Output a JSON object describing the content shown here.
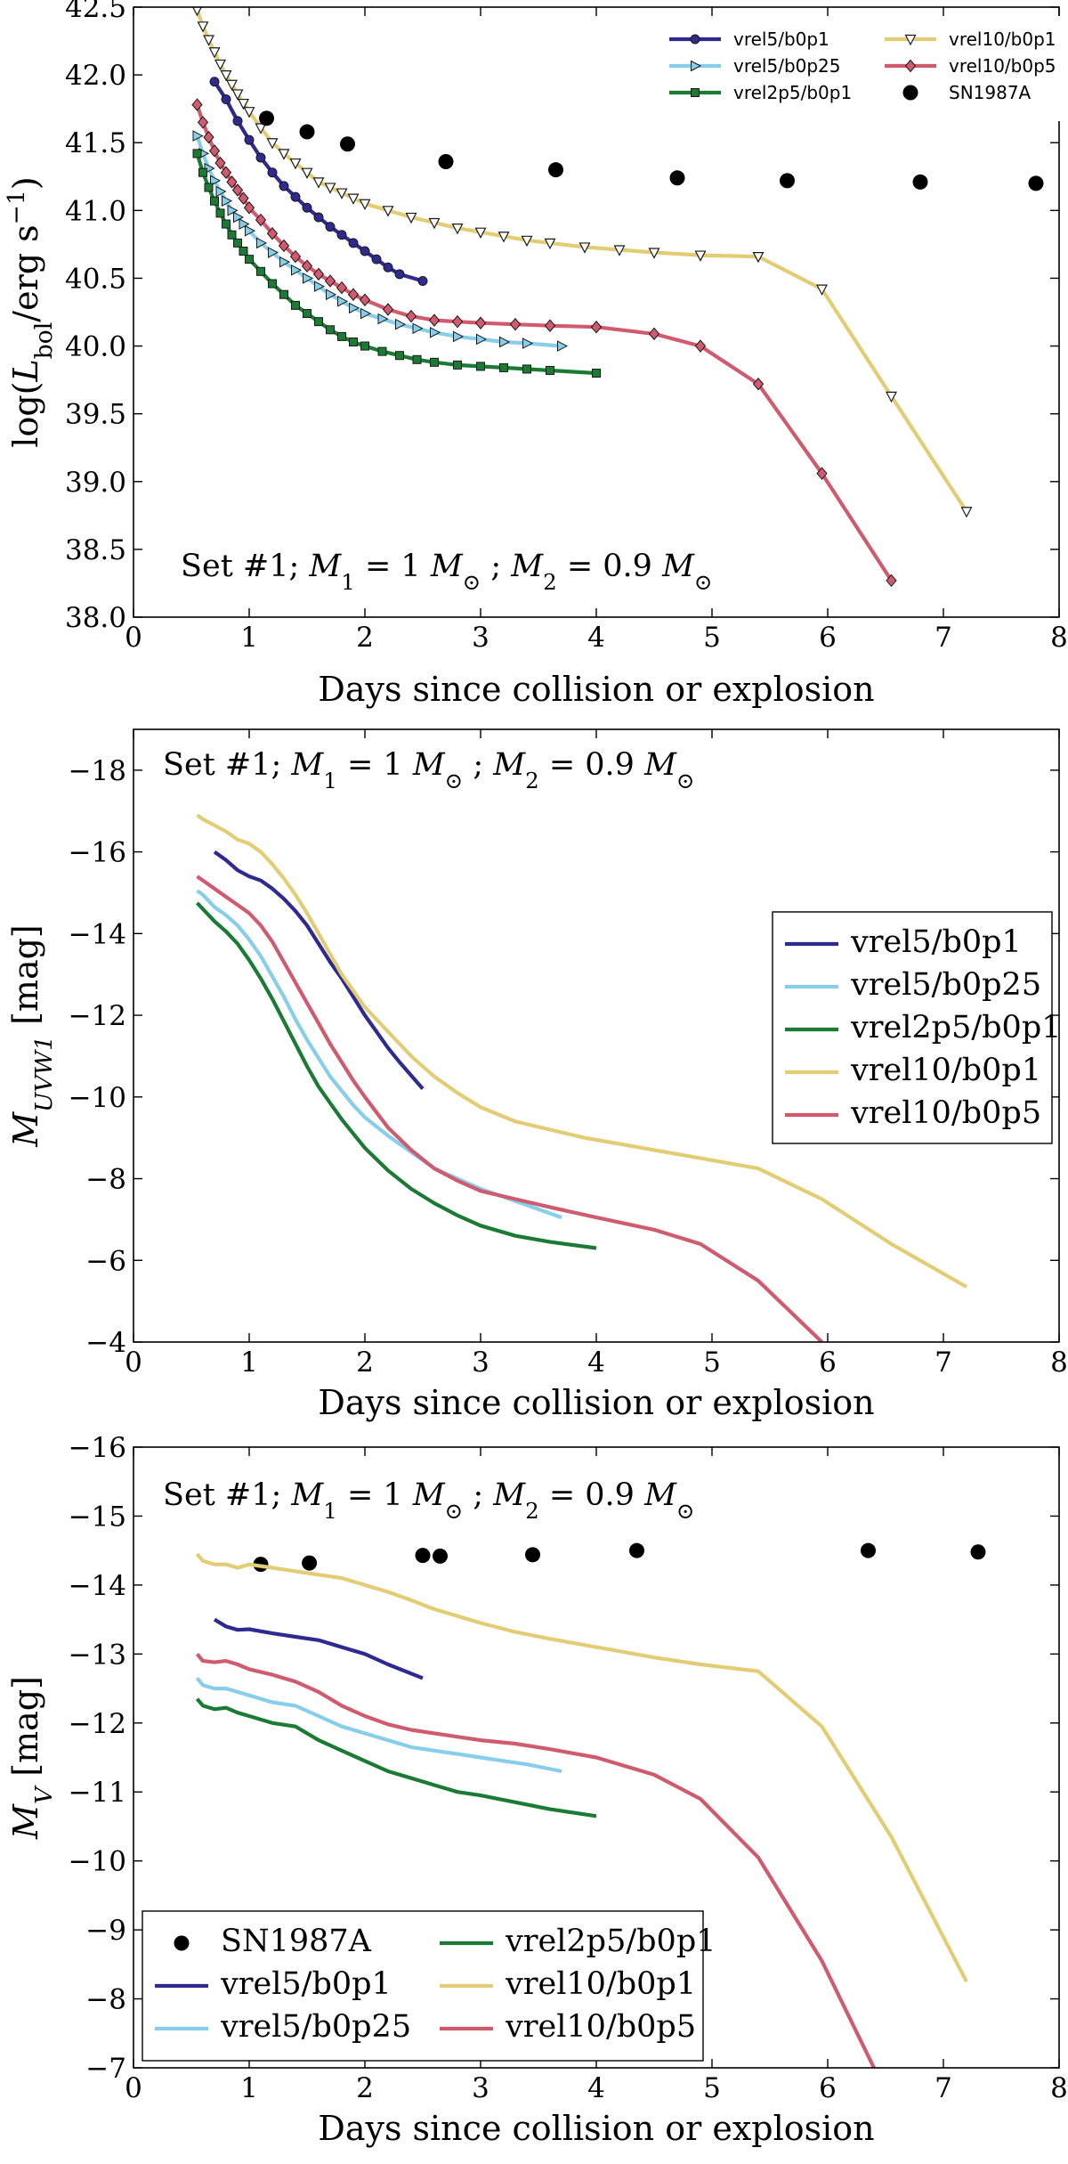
{
  "colors": {
    "vrel5/b0p1": "#2e2a8f",
    "vrel5/b0p25": "#87ceeb",
    "vrel2p5/b0p1": "#1b7a34",
    "vrel10/b0p1": "#e3cd74",
    "vrel10/b0p5": "#d05a6e",
    "SN1987A": "#000000"
  },
  "chart_data": [
    {
      "type": "line",
      "title": "",
      "xlabel": "Days since collision or explosion",
      "ylabel": "log(L_bol/erg s^-1)",
      "ylabel_parts": [
        "log(",
        "L",
        "bol",
        "/erg s",
        "−1",
        ")"
      ],
      "xlim": [
        0,
        8
      ],
      "ylim": [
        38.0,
        42.5
      ],
      "xticks": [
        "0",
        "1",
        "2",
        "3",
        "4",
        "5",
        "6",
        "7",
        "8"
      ],
      "yticks": [
        "38.0",
        "38.5",
        "39.0",
        "39.5",
        "40.0",
        "40.5",
        "41.0",
        "41.5",
        "42.0",
        "42.5"
      ],
      "annotation": "Set #1; M1 = 1 M⊙ ; M2 = 0.9 M⊙",
      "annotation_parts": [
        "Set #1; ",
        "M",
        "1",
        " = 1 ",
        "M",
        "⊙",
        " ; ",
        "M",
        "2",
        " = 0.9 ",
        "M",
        "⊙"
      ],
      "legend_position": "top-right",
      "legend_columns": 2,
      "series": [
        {
          "name": "vrel5/b0p1",
          "marker": "circle",
          "x": [
            0.7,
            0.8,
            0.9,
            1.0,
            1.1,
            1.2,
            1.3,
            1.4,
            1.5,
            1.6,
            1.7,
            1.8,
            1.9,
            2.0,
            2.1,
            2.2,
            2.3,
            2.5
          ],
          "y": [
            41.95,
            41.82,
            41.66,
            41.52,
            41.39,
            41.28,
            41.18,
            41.1,
            41.02,
            40.95,
            40.88,
            40.82,
            40.76,
            40.7,
            40.64,
            40.58,
            40.53,
            40.48
          ]
        },
        {
          "name": "vrel5/b0p25",
          "marker": "triangle-right",
          "x": [
            0.55,
            0.6,
            0.65,
            0.7,
            0.75,
            0.8,
            0.85,
            0.9,
            0.95,
            1.0,
            1.1,
            1.2,
            1.3,
            1.4,
            1.5,
            1.6,
            1.7,
            1.8,
            1.9,
            2.0,
            2.15,
            2.3,
            2.45,
            2.6,
            2.8,
            3.0,
            3.2,
            3.4,
            3.7
          ],
          "y": [
            41.55,
            41.42,
            41.31,
            41.22,
            41.14,
            41.07,
            41.0,
            40.95,
            40.9,
            40.85,
            40.76,
            40.69,
            40.62,
            40.56,
            40.5,
            40.44,
            40.38,
            40.33,
            40.28,
            40.24,
            40.2,
            40.16,
            40.13,
            40.1,
            40.07,
            40.05,
            40.03,
            40.02,
            40.0
          ]
        },
        {
          "name": "vrel2p5/b0p1",
          "marker": "square",
          "x": [
            0.55,
            0.6,
            0.65,
            0.7,
            0.75,
            0.8,
            0.85,
            0.9,
            0.95,
            1.0,
            1.1,
            1.2,
            1.3,
            1.4,
            1.5,
            1.6,
            1.7,
            1.8,
            1.9,
            2.0,
            2.15,
            2.3,
            2.45,
            2.6,
            2.8,
            3.0,
            3.2,
            3.4,
            3.6,
            4.0
          ],
          "y": [
            41.42,
            41.28,
            41.17,
            41.07,
            40.98,
            40.9,
            40.82,
            40.76,
            40.7,
            40.64,
            40.55,
            40.46,
            40.38,
            40.3,
            40.24,
            40.18,
            40.12,
            40.07,
            40.03,
            40.0,
            39.96,
            39.93,
            39.9,
            39.88,
            39.86,
            39.85,
            39.84,
            39.83,
            39.82,
            39.8
          ]
        },
        {
          "name": "vrel10/b0p1",
          "marker": "triangle-down",
          "x": [
            0.55,
            0.6,
            0.65,
            0.7,
            0.75,
            0.8,
            0.85,
            0.9,
            0.95,
            1.0,
            1.1,
            1.2,
            1.3,
            1.4,
            1.5,
            1.6,
            1.7,
            1.8,
            1.9,
            2.0,
            2.2,
            2.4,
            2.6,
            2.8,
            3.0,
            3.2,
            3.4,
            3.6,
            3.9,
            4.2,
            4.5,
            4.9,
            5.4,
            5.95,
            6.55,
            7.2
          ],
          "y": [
            42.48,
            42.36,
            42.26,
            42.17,
            42.08,
            42.0,
            41.93,
            41.86,
            41.79,
            41.73,
            41.61,
            41.5,
            41.42,
            41.35,
            41.28,
            41.21,
            41.17,
            41.13,
            41.09,
            41.05,
            41.0,
            40.95,
            40.91,
            40.87,
            40.84,
            40.81,
            40.78,
            40.76,
            40.73,
            40.71,
            40.69,
            40.67,
            40.66,
            40.42,
            39.63,
            38.78
          ]
        },
        {
          "name": "vrel10/b0p5",
          "marker": "diamond",
          "x": [
            0.55,
            0.6,
            0.65,
            0.7,
            0.75,
            0.8,
            0.85,
            0.9,
            0.95,
            1.0,
            1.1,
            1.2,
            1.3,
            1.4,
            1.5,
            1.6,
            1.7,
            1.8,
            1.9,
            2.0,
            2.2,
            2.4,
            2.6,
            2.8,
            3.0,
            3.3,
            3.6,
            4.0,
            4.5,
            4.9,
            5.4,
            5.95,
            6.55
          ],
          "y": [
            41.78,
            41.65,
            41.54,
            41.44,
            41.35,
            41.28,
            41.21,
            41.15,
            41.09,
            41.02,
            40.93,
            40.83,
            40.74,
            40.66,
            40.59,
            40.53,
            40.48,
            40.43,
            40.38,
            40.34,
            40.27,
            40.22,
            40.19,
            40.18,
            40.17,
            40.16,
            40.15,
            40.14,
            40.09,
            40.0,
            39.72,
            39.06,
            38.27
          ]
        },
        {
          "name": "SN1987A",
          "marker": "dot",
          "line": false,
          "x": [
            1.15,
            1.5,
            1.85,
            2.7,
            3.65,
            4.7,
            5.65,
            6.8,
            7.8
          ],
          "y": [
            41.68,
            41.58,
            41.49,
            41.36,
            41.3,
            41.24,
            41.22,
            41.21,
            41.2
          ]
        }
      ]
    },
    {
      "type": "line",
      "title": "",
      "xlabel": "Days since collision or explosion",
      "ylabel": "M_UVW1 [mag]",
      "ylabel_parts": [
        "M",
        "UVW1",
        " [mag]"
      ],
      "xlim": [
        0,
        8
      ],
      "ylim": [
        -19,
        -4
      ],
      "y_inverted": true,
      "xticks": [
        "0",
        "1",
        "2",
        "3",
        "4",
        "5",
        "6",
        "7",
        "8"
      ],
      "yticks": [
        "−4",
        "−6",
        "−8",
        "−10",
        "−12",
        "−14",
        "−16",
        "−18"
      ],
      "annotation": "Set #1; M1 = 1 M⊙ ; M2 = 0.9 M⊙",
      "annotation_parts": [
        "Set #1; ",
        "M",
        "1",
        " = 1 ",
        "M",
        "⊙",
        " ; ",
        "M",
        "2",
        " = 0.9 ",
        "M",
        "⊙"
      ],
      "legend_position": "center-right",
      "legend_columns": 1,
      "series": [
        {
          "name": "vrel5/b0p1",
          "x": [
            0.7,
            0.8,
            0.9,
            1.0,
            1.1,
            1.2,
            1.3,
            1.4,
            1.5,
            1.6,
            1.7,
            1.8,
            1.9,
            2.0,
            2.1,
            2.2,
            2.3,
            2.5
          ],
          "y": [
            -16.0,
            -15.8,
            -15.55,
            -15.4,
            -15.3,
            -15.1,
            -14.85,
            -14.55,
            -14.2,
            -13.75,
            -13.3,
            -12.9,
            -12.45,
            -12.0,
            -11.6,
            -11.2,
            -10.85,
            -10.2
          ]
        },
        {
          "name": "vrel5/b0p25",
          "x": [
            0.55,
            0.6,
            0.7,
            0.8,
            0.9,
            1.0,
            1.1,
            1.2,
            1.3,
            1.4,
            1.5,
            1.6,
            1.7,
            1.8,
            1.9,
            2.0,
            2.2,
            2.4,
            2.6,
            2.8,
            3.0,
            3.2,
            3.4,
            3.7
          ],
          "y": [
            -15.05,
            -14.95,
            -14.65,
            -14.45,
            -14.2,
            -13.85,
            -13.45,
            -12.95,
            -12.45,
            -11.9,
            -11.4,
            -10.95,
            -10.5,
            -10.15,
            -9.8,
            -9.5,
            -9.05,
            -8.65,
            -8.25,
            -8.0,
            -7.75,
            -7.55,
            -7.35,
            -7.05
          ]
        },
        {
          "name": "vrel2p5/b0p1",
          "x": [
            0.55,
            0.6,
            0.7,
            0.8,
            0.9,
            1.0,
            1.1,
            1.2,
            1.3,
            1.4,
            1.5,
            1.6,
            1.7,
            1.8,
            1.9,
            2.0,
            2.2,
            2.4,
            2.6,
            2.8,
            3.0,
            3.3,
            3.6,
            4.0
          ],
          "y": [
            -14.75,
            -14.6,
            -14.3,
            -14.05,
            -13.75,
            -13.35,
            -12.9,
            -12.4,
            -11.85,
            -11.3,
            -10.75,
            -10.25,
            -9.85,
            -9.45,
            -9.1,
            -8.75,
            -8.2,
            -7.75,
            -7.4,
            -7.1,
            -6.85,
            -6.6,
            -6.45,
            -6.3
          ]
        },
        {
          "name": "vrel10/b0p1",
          "x": [
            0.55,
            0.6,
            0.7,
            0.8,
            0.9,
            1.0,
            1.1,
            1.2,
            1.3,
            1.4,
            1.5,
            1.6,
            1.7,
            1.8,
            1.9,
            2.0,
            2.2,
            2.4,
            2.6,
            2.8,
            3.0,
            3.3,
            3.6,
            3.9,
            4.2,
            4.5,
            4.9,
            5.4,
            5.95,
            6.55,
            7.2
          ],
          "y": [
            -16.9,
            -16.8,
            -16.65,
            -16.5,
            -16.3,
            -16.2,
            -16.0,
            -15.7,
            -15.35,
            -14.95,
            -14.5,
            -14.0,
            -13.5,
            -13.0,
            -12.6,
            -12.2,
            -11.6,
            -11.0,
            -10.5,
            -10.1,
            -9.75,
            -9.4,
            -9.2,
            -9.0,
            -8.85,
            -8.7,
            -8.5,
            -8.25,
            -7.5,
            -6.4,
            -5.35
          ]
        },
        {
          "name": "vrel10/b0p5",
          "x": [
            0.55,
            0.6,
            0.7,
            0.8,
            0.9,
            1.0,
            1.1,
            1.2,
            1.3,
            1.4,
            1.5,
            1.6,
            1.7,
            1.8,
            1.9,
            2.0,
            2.2,
            2.4,
            2.6,
            2.8,
            3.0,
            3.3,
            3.6,
            4.0,
            4.5,
            4.9,
            5.4,
            5.95
          ],
          "y": [
            -15.4,
            -15.3,
            -15.1,
            -14.9,
            -14.7,
            -14.5,
            -14.2,
            -13.8,
            -13.3,
            -12.8,
            -12.3,
            -11.8,
            -11.3,
            -10.85,
            -10.4,
            -10.0,
            -9.25,
            -8.7,
            -8.25,
            -7.95,
            -7.7,
            -7.5,
            -7.3,
            -7.05,
            -6.75,
            -6.4,
            -5.5,
            -4.0
          ]
        }
      ]
    },
    {
      "type": "line",
      "title": "",
      "xlabel": "Days since collision or explosion",
      "ylabel": "M_V [mag]",
      "ylabel_parts": [
        "M",
        "V",
        " [mag]"
      ],
      "xlim": [
        0,
        8
      ],
      "ylim": [
        -16,
        -7
      ],
      "y_inverted": true,
      "xticks": [
        "0",
        "1",
        "2",
        "3",
        "4",
        "5",
        "6",
        "7",
        "8"
      ],
      "yticks": [
        "−7",
        "−8",
        "−9",
        "−10",
        "−11",
        "−12",
        "−13",
        "−14",
        "−15",
        "−16"
      ],
      "annotation": "Set #1; M1 = 1 M⊙ ; M2 = 0.9 M⊙",
      "annotation_parts": [
        "Set #1; ",
        "M",
        "1",
        " = 1 ",
        "M",
        "⊙",
        " ; ",
        "M",
        "2",
        " = 0.9 ",
        "M",
        "⊙"
      ],
      "legend_position": "bottom-left",
      "legend_columns": 2,
      "series": [
        {
          "name": "SN1987A",
          "marker": "dot",
          "line": false,
          "x": [
            1.1,
            1.52,
            2.5,
            2.65,
            3.45,
            4.35,
            6.35,
            7.3
          ],
          "y": [
            -14.3,
            -14.32,
            -14.43,
            -14.42,
            -14.44,
            -14.5,
            -14.5,
            -14.48
          ]
        },
        {
          "name": "vrel5/b0p1",
          "x": [
            0.7,
            0.8,
            0.9,
            1.0,
            1.2,
            1.4,
            1.6,
            1.8,
            2.0,
            2.2,
            2.5
          ],
          "y": [
            -13.5,
            -13.4,
            -13.35,
            -13.36,
            -13.3,
            -13.25,
            -13.2,
            -13.1,
            -13.0,
            -12.85,
            -12.65
          ]
        },
        {
          "name": "vrel5/b0p25",
          "x": [
            0.55,
            0.6,
            0.7,
            0.8,
            0.9,
            1.0,
            1.2,
            1.4,
            1.6,
            1.8,
            2.0,
            2.2,
            2.4,
            2.6,
            2.8,
            3.0,
            3.2,
            3.4,
            3.7
          ],
          "y": [
            -12.65,
            -12.55,
            -12.5,
            -12.5,
            -12.45,
            -12.4,
            -12.3,
            -12.25,
            -12.1,
            -11.95,
            -11.85,
            -11.75,
            -11.65,
            -11.6,
            -11.55,
            -11.5,
            -11.45,
            -11.4,
            -11.3
          ]
        },
        {
          "name": "vrel2p5/b0p1",
          "x": [
            0.55,
            0.6,
            0.7,
            0.8,
            0.9,
            1.0,
            1.2,
            1.4,
            1.6,
            1.8,
            2.0,
            2.2,
            2.4,
            2.6,
            2.8,
            3.0,
            3.3,
            3.6,
            4.0
          ],
          "y": [
            -12.35,
            -12.25,
            -12.2,
            -12.22,
            -12.15,
            -12.1,
            -12.0,
            -11.95,
            -11.75,
            -11.6,
            -11.45,
            -11.3,
            -11.2,
            -11.1,
            -11.0,
            -10.95,
            -10.85,
            -10.75,
            -10.65
          ]
        },
        {
          "name": "vrel10/b0p1",
          "x": [
            0.55,
            0.6,
            0.7,
            0.8,
            0.9,
            1.0,
            1.2,
            1.4,
            1.6,
            1.8,
            2.0,
            2.2,
            2.4,
            2.6,
            2.8,
            3.0,
            3.3,
            3.6,
            4.0,
            4.5,
            4.9,
            5.4,
            5.95,
            6.55,
            7.2
          ],
          "y": [
            -14.45,
            -14.35,
            -14.3,
            -14.3,
            -14.25,
            -14.3,
            -14.25,
            -14.2,
            -14.15,
            -14.1,
            -14.0,
            -13.9,
            -13.78,
            -13.65,
            -13.55,
            -13.45,
            -13.32,
            -13.22,
            -13.1,
            -12.95,
            -12.85,
            -12.75,
            -11.95,
            -10.35,
            -8.25
          ]
        },
        {
          "name": "vrel10/b0p5",
          "x": [
            0.55,
            0.6,
            0.7,
            0.8,
            0.9,
            1.0,
            1.2,
            1.4,
            1.6,
            1.8,
            2.0,
            2.2,
            2.4,
            2.6,
            2.8,
            3.0,
            3.3,
            3.6,
            4.0,
            4.5,
            4.9,
            5.4,
            5.95,
            6.4
          ],
          "y": [
            -13.0,
            -12.9,
            -12.88,
            -12.9,
            -12.85,
            -12.78,
            -12.7,
            -12.6,
            -12.45,
            -12.25,
            -12.1,
            -11.98,
            -11.9,
            -11.85,
            -11.8,
            -11.75,
            -11.7,
            -11.62,
            -11.5,
            -11.25,
            -10.9,
            -10.05,
            -8.55,
            -7.0
          ]
        }
      ]
    }
  ]
}
